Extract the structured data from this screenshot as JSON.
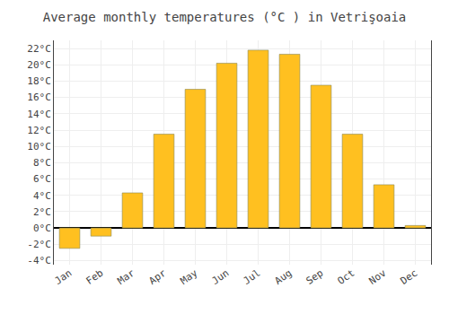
{
  "chart_data": {
    "type": "bar",
    "title": "Average monthly temperatures (°C ) in Vetrişoaia",
    "categories": [
      "Jan",
      "Feb",
      "Mar",
      "Apr",
      "May",
      "Jun",
      "Jul",
      "Aug",
      "Sep",
      "Oct",
      "Nov",
      "Dec"
    ],
    "values": [
      -2.5,
      -1.0,
      4.3,
      11.5,
      17.0,
      20.2,
      21.8,
      21.3,
      17.5,
      11.5,
      5.3,
      0.3
    ],
    "color": "#FFC020",
    "ylim": [
      -4.5,
      23
    ],
    "yticks": [
      {
        "value": -4,
        "label": "-4°C"
      },
      {
        "value": -2,
        "label": "-2°C"
      },
      {
        "value": 0,
        "label": "0°C"
      },
      {
        "value": 2,
        "label": "2°C"
      },
      {
        "value": 4,
        "label": "4°C"
      },
      {
        "value": 6,
        "label": "6°C"
      },
      {
        "value": 8,
        "label": "8°C"
      },
      {
        "value": 10,
        "label": "10°C"
      },
      {
        "value": 12,
        "label": "12°C"
      },
      {
        "value": 14,
        "label": "14°C"
      },
      {
        "value": 16,
        "label": "16°C"
      },
      {
        "value": 18,
        "label": "18°C"
      },
      {
        "value": 20,
        "label": "20°C"
      },
      {
        "value": 22,
        "label": "22°C"
      }
    ],
    "grid": true
  }
}
